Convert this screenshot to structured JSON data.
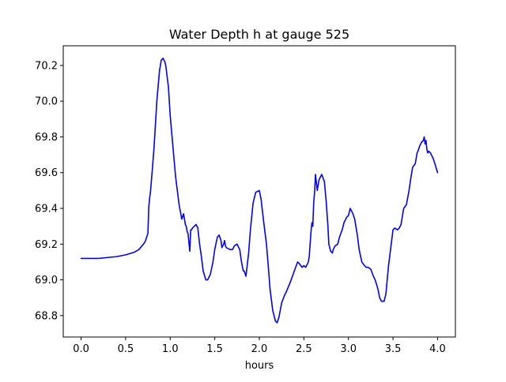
{
  "chart_data": {
    "type": "line",
    "title": "Water Depth h at gauge 525",
    "xlabel": "hours",
    "ylabel": "",
    "xlim": [
      -0.2,
      4.2
    ],
    "ylim": [
      68.68,
      70.31
    ],
    "xticks": [
      0.0,
      0.5,
      1.0,
      1.5,
      2.0,
      2.5,
      3.0,
      3.5,
      4.0
    ],
    "xtick_labels": [
      "0.0",
      "0.5",
      "1.0",
      "1.5",
      "2.0",
      "2.5",
      "3.0",
      "3.5",
      "4.0"
    ],
    "yticks": [
      68.8,
      69.0,
      69.2,
      69.4,
      69.6,
      69.8,
      70.0,
      70.2
    ],
    "ytick_labels": [
      "68.8",
      "69.0",
      "69.2",
      "69.4",
      "69.6",
      "69.8",
      "70.0",
      "70.2"
    ],
    "grid": false,
    "legend": "none",
    "series": [
      {
        "color": "#0000ff",
        "x": [
          0.0,
          0.2,
          0.3,
          0.4,
          0.5,
          0.6,
          0.65,
          0.7,
          0.72,
          0.75,
          0.76,
          0.77,
          0.78,
          0.8,
          0.82,
          0.85,
          0.88,
          0.9,
          0.92,
          0.94,
          0.95,
          0.98,
          1.0,
          1.03,
          1.06,
          1.1,
          1.13,
          1.15,
          1.17,
          1.18,
          1.19,
          1.2,
          1.22,
          1.23,
          1.24,
          1.25,
          1.27,
          1.29,
          1.31,
          1.33,
          1.35,
          1.37,
          1.4,
          1.42,
          1.45,
          1.48,
          1.5,
          1.53,
          1.55,
          1.57,
          1.58,
          1.6,
          1.61,
          1.62,
          1.63,
          1.65,
          1.67,
          1.7,
          1.72,
          1.75,
          1.78,
          1.8,
          1.82,
          1.83,
          1.85,
          1.88,
          1.9,
          1.93,
          1.96,
          2.0,
          2.02,
          2.05,
          2.08,
          2.1,
          2.12,
          2.15,
          2.18,
          2.2,
          2.22,
          2.25,
          2.28,
          2.3,
          2.35,
          2.4,
          2.43,
          2.45,
          2.48,
          2.5,
          2.52,
          2.55,
          2.56,
          2.58,
          2.59,
          2.6,
          2.61,
          2.62,
          2.63,
          2.65,
          2.67,
          2.7,
          2.73,
          2.75,
          2.77,
          2.78,
          2.8,
          2.82,
          2.83,
          2.85,
          2.88,
          2.9,
          2.93,
          2.95,
          2.98,
          3.0,
          3.02,
          3.05,
          3.07,
          3.1,
          3.12,
          3.15,
          3.18,
          3.2,
          3.22,
          3.25,
          3.28,
          3.3,
          3.33,
          3.35,
          3.37,
          3.4,
          3.42,
          3.45,
          3.48,
          3.5,
          3.52,
          3.55,
          3.57,
          3.58,
          3.59,
          3.6,
          3.62,
          3.65,
          3.68,
          3.7,
          3.72,
          3.75,
          3.77,
          3.78,
          3.8,
          3.82,
          3.84,
          3.85,
          3.86,
          3.87,
          3.88,
          3.89,
          3.9,
          3.92,
          3.95,
          3.97,
          4.0
        ],
        "y": [
          69.12,
          69.12,
          69.125,
          69.13,
          69.14,
          69.155,
          69.17,
          69.2,
          69.215,
          69.26,
          69.41,
          69.46,
          69.5,
          69.62,
          69.75,
          70.0,
          70.17,
          70.23,
          70.24,
          70.22,
          70.2,
          70.08,
          69.92,
          69.75,
          69.58,
          69.42,
          69.34,
          69.37,
          69.31,
          69.3,
          69.27,
          69.26,
          69.16,
          69.28,
          69.28,
          69.29,
          69.3,
          69.31,
          69.29,
          69.2,
          69.13,
          69.05,
          69.0,
          69.0,
          69.03,
          69.1,
          69.17,
          69.24,
          69.25,
          69.22,
          69.18,
          69.2,
          69.22,
          69.19,
          69.18,
          69.175,
          69.17,
          69.17,
          69.19,
          69.2,
          69.17,
          69.1,
          69.05,
          69.05,
          69.02,
          69.15,
          69.28,
          69.43,
          69.49,
          69.5,
          69.45,
          69.32,
          69.2,
          69.08,
          68.95,
          68.83,
          68.77,
          68.76,
          68.79,
          68.87,
          68.91,
          68.93,
          68.99,
          69.06,
          69.1,
          69.09,
          69.07,
          69.08,
          69.07,
          69.1,
          69.13,
          69.27,
          69.32,
          69.3,
          69.43,
          69.49,
          69.59,
          69.5,
          69.56,
          69.59,
          69.55,
          69.44,
          69.3,
          69.2,
          69.16,
          69.15,
          69.17,
          69.19,
          69.2,
          69.24,
          69.28,
          69.32,
          69.35,
          69.36,
          69.4,
          69.37,
          69.34,
          69.25,
          69.17,
          69.1,
          69.08,
          69.07,
          69.07,
          69.06,
          69.02,
          69.0,
          68.95,
          68.9,
          68.88,
          68.88,
          68.92,
          69.08,
          69.2,
          69.28,
          69.29,
          69.28,
          69.29,
          69.3,
          69.31,
          69.34,
          69.4,
          69.42,
          69.5,
          69.57,
          69.63,
          69.65,
          69.71,
          69.72,
          69.75,
          69.77,
          69.78,
          69.8,
          69.76,
          69.78,
          69.73,
          69.71,
          69.72,
          69.71,
          69.68,
          69.65,
          69.6
        ]
      }
    ]
  }
}
